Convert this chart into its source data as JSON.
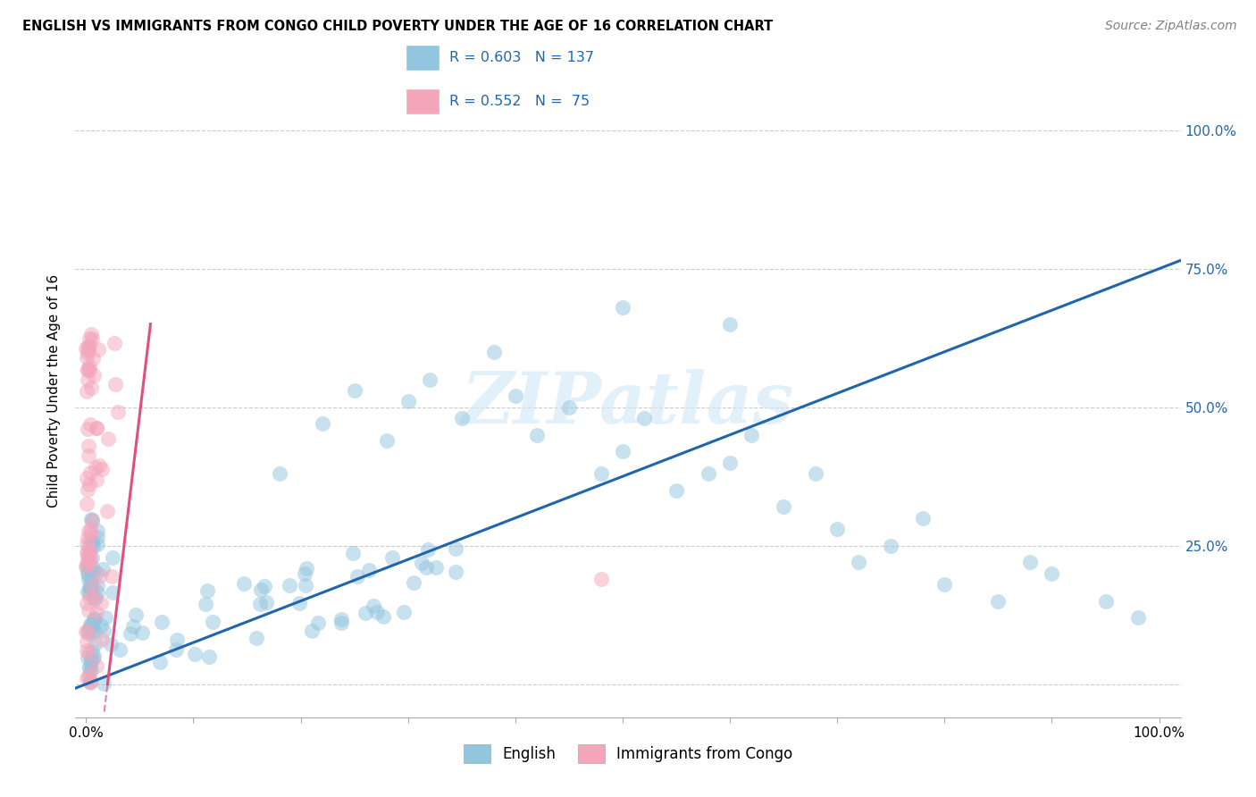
{
  "title": "ENGLISH VS IMMIGRANTS FROM CONGO CHILD POVERTY UNDER THE AGE OF 16 CORRELATION CHART",
  "source": "Source: ZipAtlas.com",
  "ylabel": "Child Poverty Under the Age of 16",
  "legend_r1": "R = 0.603",
  "legend_n1": "N = 137",
  "legend_r2": "R = 0.552",
  "legend_n2": "N =  75",
  "legend_label1": "English",
  "legend_label2": "Immigrants from Congo",
  "color_english": "#92c5de",
  "color_congo": "#f4a6bb",
  "color_english_line": "#2166ac",
  "color_congo_line": "#e0507a",
  "watermark": "ZIPatlas",
  "english_R": 0.603,
  "congo_R": 0.552,
  "english_N": 137,
  "congo_N": 75,
  "eng_line_x0": 0.0,
  "eng_line_y0": 0.0,
  "eng_line_x1": 1.0,
  "eng_line_y1": 0.75,
  "con_line_x0": 0.02,
  "con_line_y0": 0.0,
  "con_line_x1": 0.06,
  "con_line_y1": 0.65,
  "xlim_min": -0.01,
  "xlim_max": 1.02,
  "ylim_min": -0.06,
  "ylim_max": 1.12
}
